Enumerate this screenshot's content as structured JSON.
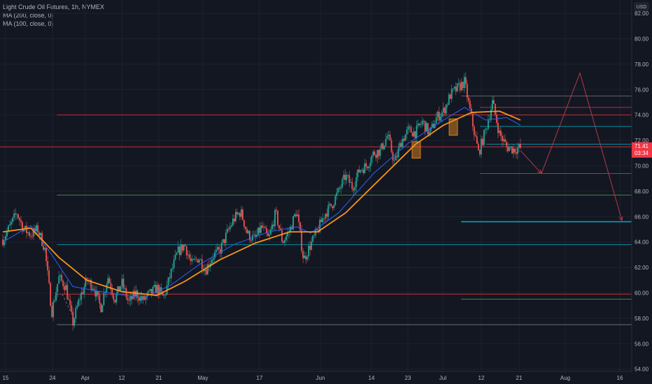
{
  "legend": {
    "symbol_line": "Light Crude Oil Futures, 1h, NYMEX",
    "ma200": "MA (200, close, 0)",
    "ma100": "MA (100, close, 0)"
  },
  "axis": {
    "currency": "USD",
    "price_tag": "71.41",
    "countdown": "03:34"
  },
  "colors": {
    "background": "#131722",
    "up_candle": "#26a69a",
    "down_candle": "#ef5350",
    "ma200": "#f7931e",
    "ma100": "#2962ff",
    "resistance": "#f23645",
    "support_cyan": "#00bcd4",
    "support_green": "#4caf50",
    "projection": "#b03a4a"
  },
  "chart_data": {
    "type": "candlestick",
    "title": "Light Crude Oil Futures, 1h, NYMEX",
    "x_tick_labels": [
      "15",
      "24",
      "Apr",
      "12",
      "21",
      "May",
      "17",
      "Jun",
      "14",
      "23",
      "Jul",
      "12",
      "21",
      "Aug",
      "16"
    ],
    "y_ticks": [
      "82.00",
      "80.00",
      "78.00",
      "76.00",
      "74.00",
      "72.00",
      "70.00",
      "68.00",
      "66.00",
      "64.00",
      "62.00",
      "60.00",
      "58.00",
      "56.00",
      "54.00"
    ],
    "ylim": [
      53.5,
      82.5
    ],
    "price_path": [
      [
        0,
        64.2
      ],
      [
        1,
        65.2
      ],
      [
        2,
        66.3
      ],
      [
        3,
        65.0
      ],
      [
        4,
        64.6
      ],
      [
        5,
        65.0
      ],
      [
        6,
        63.5
      ],
      [
        7,
        58.5
      ],
      [
        8,
        61.2
      ],
      [
        9,
        60.5
      ],
      [
        10,
        57.6
      ],
      [
        11,
        59.6
      ],
      [
        12,
        61.0
      ],
      [
        13,
        60.5
      ],
      [
        14,
        58.8
      ],
      [
        15,
        61.3
      ],
      [
        16,
        59.5
      ],
      [
        17,
        60.8
      ],
      [
        18,
        59.2
      ],
      [
        19,
        60.0
      ],
      [
        20,
        59.4
      ],
      [
        21,
        59.9
      ],
      [
        22,
        60.4
      ],
      [
        23,
        59.6
      ],
      [
        24,
        61.5
      ],
      [
        25,
        63.2
      ],
      [
        26,
        63.8
      ],
      [
        27,
        62.2
      ],
      [
        28,
        62.8
      ],
      [
        29,
        61.8
      ],
      [
        30,
        62.9
      ],
      [
        31,
        63.3
      ],
      [
        32,
        64.6
      ],
      [
        33,
        65.8
      ],
      [
        34,
        66.4
      ],
      [
        35,
        64.6
      ],
      [
        36,
        64.2
      ],
      [
        37,
        65.2
      ],
      [
        38,
        64.2
      ],
      [
        39,
        66.3
      ],
      [
        40,
        64.0
      ],
      [
        41,
        64.9
      ],
      [
        42,
        66.5
      ],
      [
        43,
        62.6
      ],
      [
        44,
        63.8
      ],
      [
        45,
        64.9
      ],
      [
        46,
        66.2
      ],
      [
        47,
        66.9
      ],
      [
        48,
        68.0
      ],
      [
        49,
        69.2
      ],
      [
        50,
        68.3
      ],
      [
        51,
        69.7
      ],
      [
        52,
        70.0
      ],
      [
        53,
        71.0
      ],
      [
        54,
        71.2
      ],
      [
        55,
        72.4
      ],
      [
        56,
        70.2
      ],
      [
        57,
        72.0
      ],
      [
        58,
        72.8
      ],
      [
        59,
        72.6
      ],
      [
        60,
        73.5
      ],
      [
        61,
        72.5
      ],
      [
        62,
        73.8
      ],
      [
        63,
        74.3
      ],
      [
        64,
        75.6
      ],
      [
        65,
        76.1
      ],
      [
        66,
        76.6
      ],
      [
        67,
        73.7
      ],
      [
        68,
        71.0
      ],
      [
        69,
        72.8
      ],
      [
        70,
        75.0
      ],
      [
        71,
        72.5
      ],
      [
        72,
        71.5
      ],
      [
        73,
        71.3
      ],
      [
        74,
        71.41
      ]
    ],
    "ma100": [
      [
        0,
        64.0
      ],
      [
        4,
        65.3
      ],
      [
        7,
        63.0
      ],
      [
        10,
        60.5
      ],
      [
        14,
        60.1
      ],
      [
        20,
        59.6
      ],
      [
        24,
        60.6
      ],
      [
        28,
        62.2
      ],
      [
        33,
        63.8
      ],
      [
        38,
        64.8
      ],
      [
        42,
        65.2
      ],
      [
        44,
        64.7
      ],
      [
        48,
        66.3
      ],
      [
        53,
        69.4
      ],
      [
        58,
        71.8
      ],
      [
        63,
        73.6
      ],
      [
        66,
        74.6
      ],
      [
        69,
        73.6
      ],
      [
        72,
        73.8
      ],
      [
        74,
        73.2
      ]
    ],
    "ma200": [
      [
        0,
        64.8
      ],
      [
        4,
        65.1
      ],
      [
        8,
        62.8
      ],
      [
        12,
        61.0
      ],
      [
        17,
        60.1
      ],
      [
        22,
        59.8
      ],
      [
        26,
        60.9
      ],
      [
        31,
        62.6
      ],
      [
        36,
        63.9
      ],
      [
        41,
        64.8
      ],
      [
        45,
        64.8
      ],
      [
        49,
        66.3
      ],
      [
        54,
        69.0
      ],
      [
        59,
        71.7
      ],
      [
        63,
        73.2
      ],
      [
        67,
        74.2
      ],
      [
        71,
        74.3
      ],
      [
        74,
        73.6
      ]
    ],
    "horizontal_levels": [
      {
        "price": 74.0,
        "from": 0.09,
        "color": "resistance"
      },
      {
        "price": 71.5,
        "from": 0.0,
        "color": "resistance"
      },
      {
        "price": 67.7,
        "from": 0.09,
        "color": "support_green"
      },
      {
        "price": 63.8,
        "from": 0.09,
        "color": "support_cyan"
      },
      {
        "price": 59.9,
        "from": 0.09,
        "color": "resistance"
      },
      {
        "price": 57.5,
        "from": 0.09,
        "color": "gray"
      },
      {
        "price": 75.5,
        "from": 0.73,
        "color": "gray"
      },
      {
        "price": 74.6,
        "from": 0.76,
        "color": "resistance"
      },
      {
        "price": 73.1,
        "from": 0.76,
        "color": "support_cyan"
      },
      {
        "price": 71.7,
        "from": 0.77,
        "color": "support_cyan"
      },
      {
        "price": 69.4,
        "from": 0.76,
        "color": "resistance"
      },
      {
        "price": 65.6,
        "from": 0.73,
        "color": "support_cyan"
      },
      {
        "price": 59.5,
        "from": 0.73,
        "color": "support_green"
      }
    ],
    "projection_path": [
      [
        74,
        71.2
      ],
      [
        77,
        69.4
      ],
      [
        82.5,
        77.3
      ],
      [
        88.5,
        65.7
      ]
    ],
    "highlight_boxes": [
      {
        "x0": 58.5,
        "x1": 59.7,
        "y0": 70.6,
        "y1": 71.9
      },
      {
        "x0": 63.8,
        "x1": 65.0,
        "y0": 72.4,
        "y1": 73.7
      }
    ]
  }
}
